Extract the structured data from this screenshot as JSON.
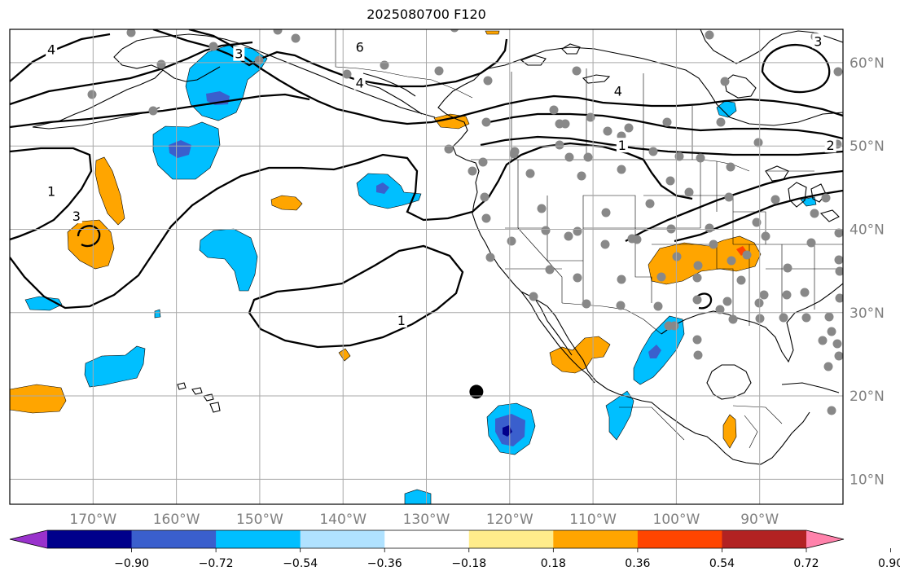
{
  "title": "2025080700 F120",
  "map": {
    "projection": "PlateCarree",
    "lon_range": [
      -180,
      -80
    ],
    "lat_range": [
      7,
      64
    ],
    "lon_labels": [
      {
        "lon": -170,
        "text": "170°W"
      },
      {
        "lon": -160,
        "text": "160°W"
      },
      {
        "lon": -150,
        "text": "150°W"
      },
      {
        "lon": -140,
        "text": "140°W"
      },
      {
        "lon": -130,
        "text": "130°W"
      },
      {
        "lon": -120,
        "text": "120°W"
      },
      {
        "lon": -110,
        "text": "110°W"
      },
      {
        "lon": -100,
        "text": "100°W"
      },
      {
        "lon": -90,
        "text": "90°W"
      }
    ],
    "lat_labels": [
      {
        "lat": 10,
        "text": "10°N"
      },
      {
        "lat": 20,
        "text": "20°N"
      },
      {
        "lat": 30,
        "text": "30°N"
      },
      {
        "lat": 40,
        "text": "40°N"
      },
      {
        "lat": 50,
        "text": "50°N"
      },
      {
        "lat": 60,
        "text": "60°N"
      }
    ],
    "contour_labels": [
      {
        "text": "4",
        "lon": -175,
        "lat": 61.5
      },
      {
        "text": "3",
        "lon": -152.5,
        "lat": 61
      },
      {
        "text": "6",
        "lon": -138,
        "lat": 61.8
      },
      {
        "text": "4",
        "lon": -138,
        "lat": 57.5
      },
      {
        "text": "4",
        "lon": -107,
        "lat": 56.5
      },
      {
        "text": "3",
        "lon": -83,
        "lat": 62.5
      },
      {
        "text": "1",
        "lon": -106.5,
        "lat": 50
      },
      {
        "text": "2",
        "lon": -81.5,
        "lat": 50
      },
      {
        "text": "1",
        "lon": -175,
        "lat": 44.5
      },
      {
        "text": "1",
        "lon": -133,
        "lat": 29
      },
      {
        "text": "3",
        "lon": -172,
        "lat": 41.5
      }
    ],
    "colors": {
      "grid": "#a9a9a9",
      "label": "#808080",
      "station_dot": "#888888",
      "storm_marker": "#000000"
    },
    "storm_marker": {
      "lon": -124,
      "lat": 20.5
    }
  },
  "colorbar": {
    "ticks": [
      "−0.90",
      "−0.72",
      "−0.54",
      "−0.36",
      "−0.18",
      "0.18",
      "0.36",
      "0.54",
      "0.72",
      "0.90"
    ],
    "colors": [
      "#9932CC",
      "#00008B",
      "#3A5FCD",
      "#00BFFF",
      "#B0E2FF",
      "#FFFFFF",
      "#FFEC8B",
      "#FFA500",
      "#FF4500",
      "#B22222",
      "#FF82AB"
    ]
  }
}
